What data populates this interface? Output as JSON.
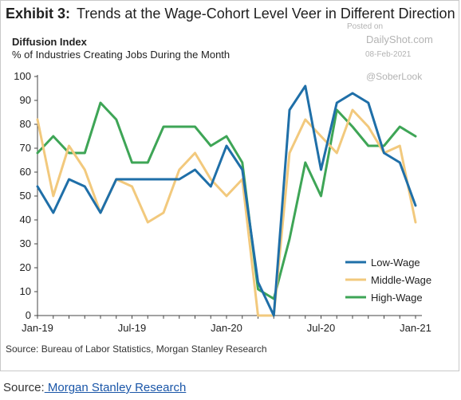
{
  "header": {
    "exhibit": "Exhibit 3:",
    "title": "Trends at the Wage-Cohort Level Veer in Different Direction",
    "subtitle": "Diffusion Index",
    "subtitle2": "% of Industries Creating Jobs During the Month"
  },
  "watermark": {
    "posted": "Posted on",
    "site": "DailyShot.com",
    "date": "08-Feb-2021",
    "handle": "@SoberLook"
  },
  "source_line": "Source: Bureau of Labor Statistics, Morgan Stanley Research",
  "footer": {
    "prefix": "Source:",
    "link": " Morgan Stanley Research"
  },
  "colors": {
    "low": "#1f6fa8",
    "middle": "#f2c97d",
    "high": "#3ea556",
    "axis": "#444444",
    "grid": "#dddddd"
  },
  "chart_data": {
    "type": "line",
    "title": "Trends at the Wage-Cohort Level Veer in Different Direction",
    "ylim": [
      0,
      100
    ],
    "yticks": [
      0,
      10,
      20,
      30,
      40,
      50,
      60,
      70,
      80,
      90,
      100
    ],
    "xtick_labels": [
      "Jan-19",
      "Jul-19",
      "Jan-20",
      "Jul-20",
      "Jan-21"
    ],
    "xtick_index": [
      0,
      6,
      12,
      18,
      24
    ],
    "grid": false,
    "legend_position": "bottom-right",
    "x": [
      "Jan-19",
      "Feb-19",
      "Mar-19",
      "Apr-19",
      "May-19",
      "Jun-19",
      "Jul-19",
      "Aug-19",
      "Sep-19",
      "Oct-19",
      "Nov-19",
      "Dec-19",
      "Jan-20",
      "Feb-20",
      "Mar-20",
      "Apr-20",
      "May-20",
      "Jun-20",
      "Jul-20",
      "Aug-20",
      "Sep-20",
      "Oct-20",
      "Nov-20",
      "Dec-20",
      "Jan-21"
    ],
    "series": [
      {
        "name": "Low-Wage",
        "color_key": "low",
        "values": [
          54,
          43,
          57,
          54,
          43,
          57,
          57,
          57,
          57,
          57,
          61,
          54,
          71,
          61,
          14,
          0,
          86,
          96,
          61,
          89,
          93,
          89,
          68,
          64,
          46
        ]
      },
      {
        "name": "Middle-Wage",
        "color_key": "middle",
        "values": [
          82,
          50,
          71,
          61,
          43,
          57,
          54,
          39,
          43,
          61,
          68,
          57,
          50,
          57,
          0,
          0,
          68,
          82,
          75,
          68,
          86,
          79,
          68,
          71,
          39
        ]
      },
      {
        "name": "High-Wage",
        "color_key": "high",
        "values": [
          68,
          75,
          68,
          68,
          89,
          82,
          64,
          64,
          79,
          79,
          79,
          71,
          75,
          64,
          11,
          7,
          32,
          64,
          50,
          86,
          79,
          71,
          71,
          79,
          75
        ]
      }
    ]
  }
}
